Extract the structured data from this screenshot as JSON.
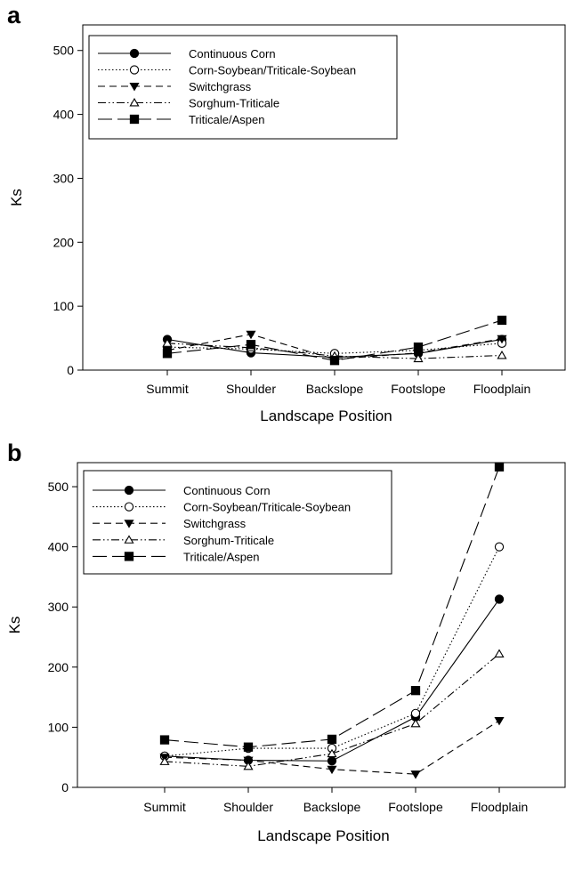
{
  "chart_data": [
    {
      "panel_label": "a",
      "type": "line",
      "categories": [
        "Summit",
        "Shoulder",
        "Backslope",
        "Footslope",
        "Floodplain"
      ],
      "xlabel": "Landscape Position",
      "ylabel": "Ks",
      "ylim": [
        0,
        540
      ],
      "yticks": [
        0,
        100,
        200,
        300,
        400,
        500
      ],
      "grid": false,
      "legend_position": "top-left",
      "series": [
        {
          "name": "Continuous Corn",
          "marker": "circle-filled",
          "dash": "solid",
          "values": [
            48,
            27,
            20,
            26,
            48
          ]
        },
        {
          "name": "Corn-Soybean/Triticale-Soybean",
          "marker": "circle-open",
          "dash": "dotted",
          "values": [
            36,
            33,
            26,
            31,
            42
          ]
        },
        {
          "name": "Switchgrass",
          "marker": "triangle-down-filled",
          "dash": "dashed",
          "values": [
            31,
            56,
            17,
            27,
            49
          ]
        },
        {
          "name": "Sorghum-Triticale",
          "marker": "triangle-up-open",
          "dash": "dash-dot-dot",
          "values": [
            42,
            35,
            22,
            18,
            23
          ]
        },
        {
          "name": "Triticale/Aspen",
          "marker": "square-filled",
          "dash": "long-dash",
          "values": [
            26,
            40,
            15,
            36,
            78
          ]
        }
      ]
    },
    {
      "panel_label": "b",
      "type": "line",
      "categories": [
        "Summit",
        "Shoulder",
        "Backslope",
        "Footslope",
        "Floodplain"
      ],
      "xlabel": "Landscape Position",
      "ylabel": "Ks",
      "ylim": [
        0,
        540
      ],
      "yticks": [
        0,
        100,
        200,
        300,
        400,
        500
      ],
      "grid": false,
      "legend_position": "top-left",
      "series": [
        {
          "name": "Continuous Corn",
          "marker": "circle-filled",
          "dash": "solid",
          "values": [
            52,
            45,
            44,
            117,
            313
          ]
        },
        {
          "name": "Corn-Soybean/Triticale-Soybean",
          "marker": "circle-open",
          "dash": "dotted",
          "values": [
            52,
            65,
            65,
            123,
            400
          ]
        },
        {
          "name": "Switchgrass",
          "marker": "triangle-down-filled",
          "dash": "dashed",
          "values": [
            50,
            45,
            30,
            22,
            111
          ]
        },
        {
          "name": "Sorghum-Triticale",
          "marker": "triangle-up-open",
          "dash": "dash-dot-dot",
          "values": [
            43,
            35,
            56,
            106,
            222
          ]
        },
        {
          "name": "Triticale/Aspen",
          "marker": "square-filled",
          "dash": "long-dash",
          "values": [
            79,
            67,
            80,
            161,
            533
          ]
        }
      ]
    }
  ]
}
